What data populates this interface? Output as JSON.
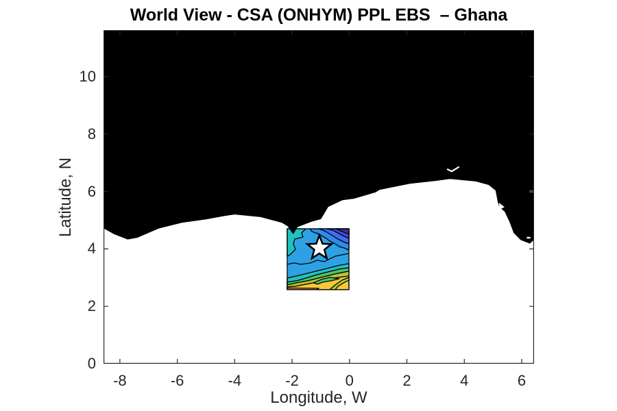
{
  "title": "World View - CSA (ONHYM) PPL EBS  – Ghana",
  "axes": {
    "xlabel": "Longitude, W",
    "ylabel": "Latitude, N",
    "x_ticks": [
      {
        "label": "-8",
        "value": -8
      },
      {
        "label": "-6",
        "value": -6
      },
      {
        "label": "-4",
        "value": -4
      },
      {
        "label": "-2",
        "value": -2
      },
      {
        "label": "0",
        "value": 0
      },
      {
        "label": "2",
        "value": 2
      },
      {
        "label": "4",
        "value": 4
      },
      {
        "label": "6",
        "value": 6
      }
    ],
    "y_ticks": [
      {
        "label": "0",
        "value": 0
      },
      {
        "label": "2",
        "value": 2
      },
      {
        "label": "4",
        "value": 4
      },
      {
        "label": "6",
        "value": 6
      },
      {
        "label": "8",
        "value": 8
      },
      {
        "label": "10",
        "value": 10
      }
    ],
    "x_range": [
      -8.57,
      6.43
    ],
    "y_range": [
      0,
      11.62
    ],
    "axis_color": "#262626"
  },
  "map": {
    "land_color": "#000000",
    "sea_color": "#ffffff",
    "coastline": [
      [
        -8.57,
        4.73
      ],
      [
        -8.19,
        4.52
      ],
      [
        -7.73,
        4.34
      ],
      [
        -7.4,
        4.4
      ],
      [
        -6.65,
        4.72
      ],
      [
        -5.85,
        4.92
      ],
      [
        -5.0,
        5.04
      ],
      [
        -4.35,
        5.16
      ],
      [
        -4.0,
        5.21
      ],
      [
        -3.1,
        5.12
      ],
      [
        -2.35,
        4.92
      ],
      [
        -2.15,
        4.8
      ],
      [
        -1.96,
        4.53
      ],
      [
        -1.82,
        4.77
      ],
      [
        -1.35,
        4.95
      ],
      [
        -1.0,
        5.05
      ],
      [
        -0.75,
        5.47
      ],
      [
        -0.24,
        5.71
      ],
      [
        0.15,
        5.76
      ],
      [
        0.9,
        5.98
      ],
      [
        1.05,
        6.07
      ],
      [
        2.1,
        6.28
      ],
      [
        3.0,
        6.38
      ],
      [
        3.5,
        6.45
      ],
      [
        4.4,
        6.36
      ],
      [
        4.85,
        6.24
      ],
      [
        5.1,
        6.04
      ],
      [
        5.18,
        5.62
      ],
      [
        5.24,
        5.46
      ],
      [
        5.42,
        5.3
      ],
      [
        5.58,
        4.96
      ],
      [
        5.73,
        4.56
      ],
      [
        5.97,
        4.32
      ],
      [
        6.28,
        4.2
      ],
      [
        6.43,
        4.33
      ]
    ],
    "white_marks": [
      {
        "name": "lagoon-gap",
        "type": "polyline",
        "stroke_width": 2.2,
        "points": [
          [
            3.4,
            6.78
          ],
          [
            3.56,
            6.7
          ],
          [
            3.82,
            6.86
          ]
        ]
      },
      {
        "name": "estuary-notch",
        "type": "polygon",
        "points": [
          [
            5.21,
            5.61
          ],
          [
            5.4,
            5.46
          ],
          [
            5.23,
            5.37
          ]
        ]
      },
      {
        "name": "coast-speck",
        "type": "polygon",
        "points": [
          [
            6.18,
            4.42
          ],
          [
            6.3,
            4.42
          ],
          [
            6.3,
            4.36
          ],
          [
            6.18,
            4.36
          ]
        ]
      },
      {
        "name": "right-edge-white-tick",
        "type": "polyline",
        "stroke_width": 2.0,
        "points": [
          [
            6.43,
            6.0
          ],
          [
            6.27,
            6.0
          ]
        ]
      }
    ],
    "contour_patch": {
      "lon_range": [
        -2.17,
        -0.02
      ],
      "lat_range": [
        2.58,
        4.7
      ],
      "local_size": [
        90,
        89
      ],
      "base_color": "#2EA1E4",
      "line_color": "#000000",
      "bands": [
        {
          "name": "teal-band",
          "color": "#1FC2BE",
          "points": [
            [
              0,
              72
            ],
            [
              14,
              69
            ],
            [
              30,
              65
            ],
            [
              46,
              61
            ],
            [
              62,
              57
            ],
            [
              78,
              53
            ],
            [
              90,
              51
            ],
            [
              90,
              57
            ],
            [
              76,
              59
            ],
            [
              60,
              63
            ],
            [
              44,
              67
            ],
            [
              28,
              72
            ],
            [
              14,
              76
            ],
            [
              0,
              78
            ]
          ]
        },
        {
          "name": "green-band",
          "color": "#4DC46A",
          "points": [
            [
              0,
              78
            ],
            [
              14,
              76
            ],
            [
              28,
              72
            ],
            [
              44,
              67
            ],
            [
              60,
              63
            ],
            [
              76,
              59
            ],
            [
              90,
              57
            ],
            [
              90,
              62
            ],
            [
              70,
              66
            ],
            [
              50,
              71
            ],
            [
              30,
              76
            ],
            [
              14,
              79
            ],
            [
              0,
              82
            ]
          ]
        },
        {
          "name": "olive-band",
          "color": "#B5C832",
          "points": [
            [
              0,
              82
            ],
            [
              14,
              79
            ],
            [
              30,
              76
            ],
            [
              50,
              71
            ],
            [
              70,
              66
            ],
            [
              90,
              62
            ],
            [
              90,
              69
            ],
            [
              68,
              72
            ],
            [
              48,
              77
            ],
            [
              28,
              81
            ],
            [
              12,
              84
            ],
            [
              0,
              85
            ]
          ]
        },
        {
          "name": "yellow-band",
          "color": "#F5C83B",
          "points": [
            [
              0,
              85
            ],
            [
              12,
              84
            ],
            [
              28,
              81
            ],
            [
              48,
              77
            ],
            [
              68,
              72
            ],
            [
              90,
              69
            ],
            [
              90,
              89
            ],
            [
              0,
              89
            ]
          ]
        },
        {
          "name": "orange-strip",
          "color": "#F7A03C",
          "points": [
            [
              0,
              86.5
            ],
            [
              46,
              87
            ],
            [
              43,
              89
            ],
            [
              0,
              89
            ]
          ]
        },
        {
          "name": "green-tongue",
          "color": "#4DC46A",
          "points": [
            [
              38,
              79
            ],
            [
              50,
              74
            ],
            [
              62,
              71
            ],
            [
              76,
              73
            ],
            [
              64,
              76
            ],
            [
              52,
              78
            ],
            [
              44,
              81
            ]
          ]
        },
        {
          "name": "olive-streak",
          "color": "#B5C832",
          "points": [
            [
              62,
              89
            ],
            [
              70,
              82
            ],
            [
              80,
              75
            ],
            [
              90,
              71
            ],
            [
              90,
              75
            ],
            [
              82,
              79
            ],
            [
              74,
              84
            ],
            [
              70,
              89
            ]
          ]
        },
        {
          "name": "teal-topleft",
          "color": "#1FC2BE",
          "points": [
            [
              0,
              0
            ],
            [
              27,
              0
            ],
            [
              21,
              6
            ],
            [
              23,
              12
            ],
            [
              11,
              15
            ],
            [
              9,
              22
            ],
            [
              12,
              30
            ],
            [
              4,
              38
            ],
            [
              0,
              40
            ]
          ]
        },
        {
          "name": "blue-band-1",
          "color": "#2F8BEB",
          "points": [
            [
              33,
              0
            ],
            [
              90,
              0
            ],
            [
              90,
              31
            ],
            [
              83,
              28
            ],
            [
              76,
              26
            ],
            [
              70,
              22
            ],
            [
              62,
              18
            ],
            [
              57,
              14
            ],
            [
              50,
              10
            ],
            [
              44,
              7
            ],
            [
              36,
              4
            ]
          ]
        },
        {
          "name": "blue-band-2",
          "color": "#3F6EF2",
          "points": [
            [
              46,
              0
            ],
            [
              90,
              0
            ],
            [
              90,
              22
            ],
            [
              82,
              19
            ],
            [
              74,
              15
            ],
            [
              66,
              10
            ],
            [
              58,
              5
            ],
            [
              52,
              2
            ]
          ]
        },
        {
          "name": "blue-band-3",
          "color": "#4A4AE0",
          "points": [
            [
              58,
              0
            ],
            [
              90,
              0
            ],
            [
              90,
              14
            ],
            [
              81,
              10
            ],
            [
              72,
              5
            ],
            [
              66,
              2
            ]
          ]
        },
        {
          "name": "indigo-corner",
          "color": "#3C2BA8",
          "points": [
            [
              71,
              0
            ],
            [
              90,
              0
            ],
            [
              90,
              8
            ],
            [
              80,
              4
            ]
          ]
        }
      ],
      "extra_lines": [
        [
          [
            0,
            52
          ],
          [
            10,
            50
          ],
          [
            20,
            52
          ],
          [
            34,
            50
          ],
          [
            44,
            46
          ],
          [
            54,
            48
          ],
          [
            62,
            44
          ],
          [
            70,
            40
          ],
          [
            80,
            38
          ],
          [
            90,
            36
          ]
        ]
      ]
    },
    "star_marker": {
      "lon": -1.05,
      "lat": 4.03,
      "outer_r": 18.5,
      "inner_ratio": 0.42,
      "fill": "#FFFFFF",
      "stroke": "#000000",
      "stroke_width": 2.6
    }
  }
}
